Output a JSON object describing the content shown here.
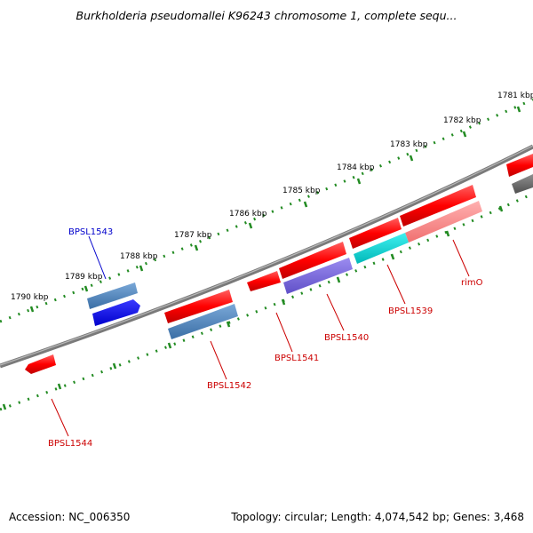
{
  "title": "Burkholderia pseudomallei K96243 chromosome 1, complete sequ...",
  "footer": {
    "accession": "Accession: NC_006350",
    "summary": "Topology: circular; Length: 4,074,542 bp; Genes: 3,468"
  },
  "colors": {
    "backbone": "#808080",
    "ticks": "#228b22",
    "gene_forward_label": "#0000cc",
    "gene_reverse_label": "#cc0000"
  },
  "ticks": [
    {
      "label": "1781 kbp"
    },
    {
      "label": "1782 kbp"
    },
    {
      "label": "1783 kbp"
    },
    {
      "label": "1784 kbp"
    },
    {
      "label": "1785 kbp"
    },
    {
      "label": "1786 kbp"
    },
    {
      "label": "1787 kbp"
    },
    {
      "label": "1788 kbp"
    },
    {
      "label": "1789 kbp"
    },
    {
      "label": "1790 kbp"
    }
  ],
  "labels": [
    {
      "text": "BPSL1543",
      "strand": "forward"
    },
    {
      "text": "BPSL1544",
      "strand": "reverse"
    },
    {
      "text": "BPSL1542",
      "strand": "reverse"
    },
    {
      "text": "BPSL1541",
      "strand": "reverse"
    },
    {
      "text": "BPSL1540",
      "strand": "reverse"
    },
    {
      "text": "BPSL1539",
      "strand": "reverse"
    },
    {
      "text": "rimO",
      "strand": "reverse"
    }
  ]
}
